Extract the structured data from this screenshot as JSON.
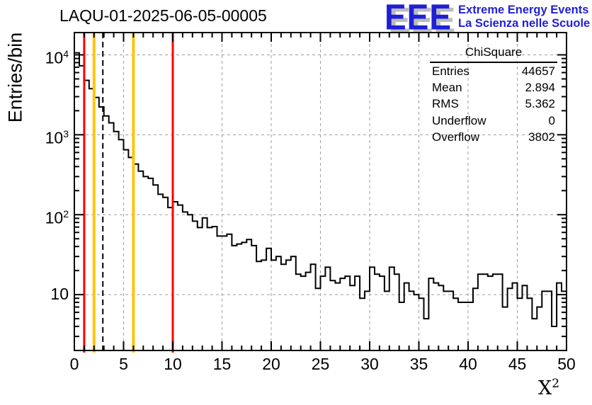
{
  "page_title": "LAQU-01-2025-06-05-00005",
  "logo": {
    "acronym": "EEE",
    "line1": "Extreme Energy Events",
    "line2": "La Scienza nelle Scuole",
    "color": "#1f1fd8",
    "shadow_color": "#bcbcbc"
  },
  "stats_box": {
    "title": "ChiSquare",
    "rows": [
      {
        "label": "Entries",
        "value": "44657"
      },
      {
        "label": "Mean",
        "value": "2.894"
      },
      {
        "label": "RMS",
        "value": "5.362"
      },
      {
        "label": "Underflow",
        "value": "0"
      },
      {
        "label": "Overflow",
        "value": "3802"
      }
    ]
  },
  "axes": {
    "y_title": "Entries/bin",
    "x_title_base": "X",
    "x_title_exponent": "2"
  },
  "chart_data": {
    "type": "histogram",
    "title": "LAQU-01-2025-06-05-00005",
    "xlabel": "X^2",
    "ylabel": "Entries/bin",
    "ylog": true,
    "xlim": [
      0,
      50
    ],
    "ylim": [
      2,
      19000
    ],
    "x_start": 0,
    "bin_width": 0.5,
    "x_major_ticks": [
      0,
      5,
      10,
      15,
      20,
      25,
      30,
      35,
      40,
      45,
      50
    ],
    "y_major_ticks": [
      10,
      100,
      1000,
      10000
    ],
    "grid": "dashed-at-major-ticks",
    "grid_color": "#9e9e9e",
    "line_color": "#000000",
    "values": [
      10600,
      7300,
      4790,
      3770,
      2930,
      2230,
      1720,
      1410,
      1100,
      870,
      650,
      520,
      430,
      350,
      300,
      285,
      235,
      180,
      165,
      123,
      145,
      132,
      108,
      100,
      83,
      69,
      91,
      69,
      71,
      54,
      54,
      57,
      41,
      43,
      45,
      49,
      41,
      26,
      27,
      38,
      27,
      30,
      24,
      27,
      30,
      18,
      17,
      19,
      24,
      12,
      17,
      22,
      15,
      14,
      16,
      17,
      13,
      17,
      9,
      11,
      22,
      18,
      17,
      11,
      22,
      18,
      8,
      14,
      11,
      10,
      9,
      5,
      16,
      14,
      13,
      11,
      11,
      9,
      8,
      8,
      8,
      12,
      18,
      18,
      17,
      18,
      18,
      7,
      12,
      14,
      9,
      13,
      9,
      5,
      7,
      11,
      11,
      4,
      14,
      11
    ],
    "marker_lines": [
      {
        "x": 1,
        "color": "#ff0000",
        "style": "solid",
        "width": 3
      },
      {
        "x": 2,
        "color": "#ffc50a",
        "style": "solid",
        "width": 4
      },
      {
        "x": 2.894,
        "color": "#000000",
        "style": "dashed",
        "width": 2
      },
      {
        "x": 6,
        "color": "#ffc50a",
        "style": "solid",
        "width": 4
      },
      {
        "x": 10,
        "color": "#ff0000",
        "style": "solid",
        "width": 3
      }
    ],
    "stats": {
      "name": "ChiSquare",
      "entries": 44657,
      "mean": 2.894,
      "rms": 5.362,
      "underflow": 0,
      "overflow": 3802
    }
  }
}
